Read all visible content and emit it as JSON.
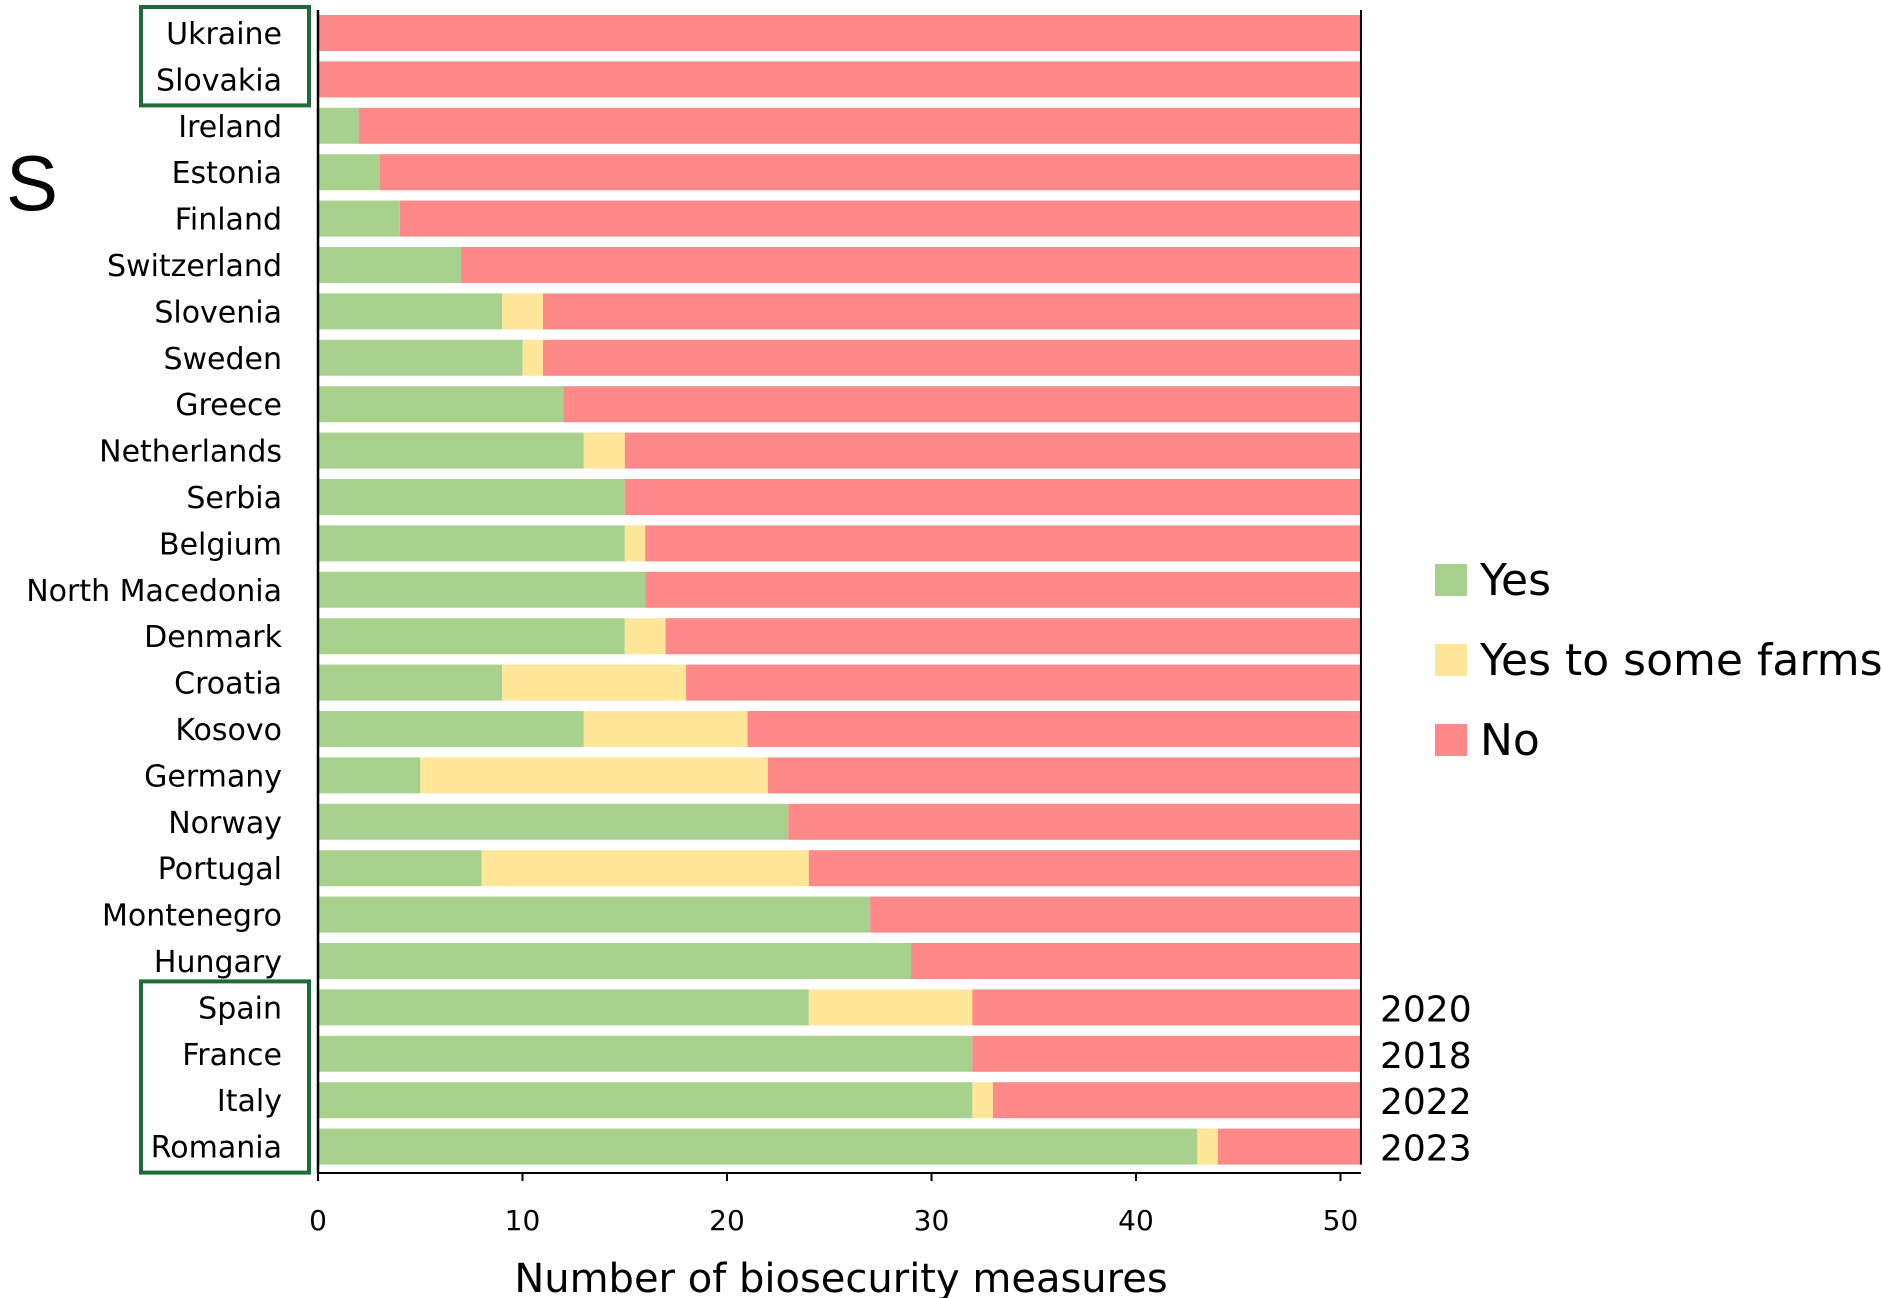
{
  "panel_letter": "S",
  "chart_data": {
    "type": "bar",
    "orientation": "horizontal",
    "stacked": true,
    "categories": [
      "Ukraine",
      "Slovakia",
      "Ireland",
      "Estonia",
      "Finland",
      "Switzerland",
      "Slovenia",
      "Sweden",
      "Greece",
      "Netherlands",
      "Serbia",
      "Belgium",
      "North Macedonia",
      "Denmark",
      "Croatia",
      "Kosovo",
      "Germany",
      "Norway",
      "Portugal",
      "Montenegro",
      "Hungary",
      "Spain",
      "France",
      "Italy",
      "Romania"
    ],
    "series": [
      {
        "name": "Yes",
        "color": "#a9d18e",
        "values": [
          0,
          0,
          2,
          3,
          4,
          7,
          9,
          10,
          12,
          13,
          15,
          15,
          16,
          15,
          9,
          13,
          5,
          23,
          8,
          27,
          29,
          24,
          32,
          32,
          43
        ]
      },
      {
        "name": "Yes to some farms",
        "color": "#ffe699",
        "values": [
          0,
          0,
          0,
          0,
          0,
          0,
          2,
          1,
          0,
          2,
          0,
          1,
          0,
          2,
          9,
          8,
          17,
          0,
          16,
          0,
          0,
          8,
          0,
          1,
          1
        ]
      },
      {
        "name": "No",
        "color": "#ff8989",
        "values": [
          51,
          51,
          49,
          48,
          47,
          44,
          40,
          40,
          39,
          36,
          36,
          35,
          35,
          34,
          33,
          30,
          29,
          28,
          27,
          24,
          22,
          19,
          19,
          18,
          7
        ]
      }
    ],
    "xlabel": "Number of biosecurity measures",
    "xlim": [
      0,
      51
    ],
    "xticks": [
      0,
      10,
      20,
      30,
      40,
      50
    ],
    "year_labels": [
      {
        "category": "Spain",
        "text": "2020"
      },
      {
        "category": "France",
        "text": "2018"
      },
      {
        "category": "Italy",
        "text": "2022"
      },
      {
        "category": "Romania",
        "text": "2023"
      }
    ],
    "highlighted_groups": [
      {
        "countries": [
          "Ukraine",
          "Slovakia"
        ],
        "color": "#1e6b3a"
      },
      {
        "countries": [
          "Spain",
          "France",
          "Italy",
          "Romania"
        ],
        "color": "#1e6b3a"
      }
    ],
    "grid": false,
    "legend_position": "right"
  }
}
